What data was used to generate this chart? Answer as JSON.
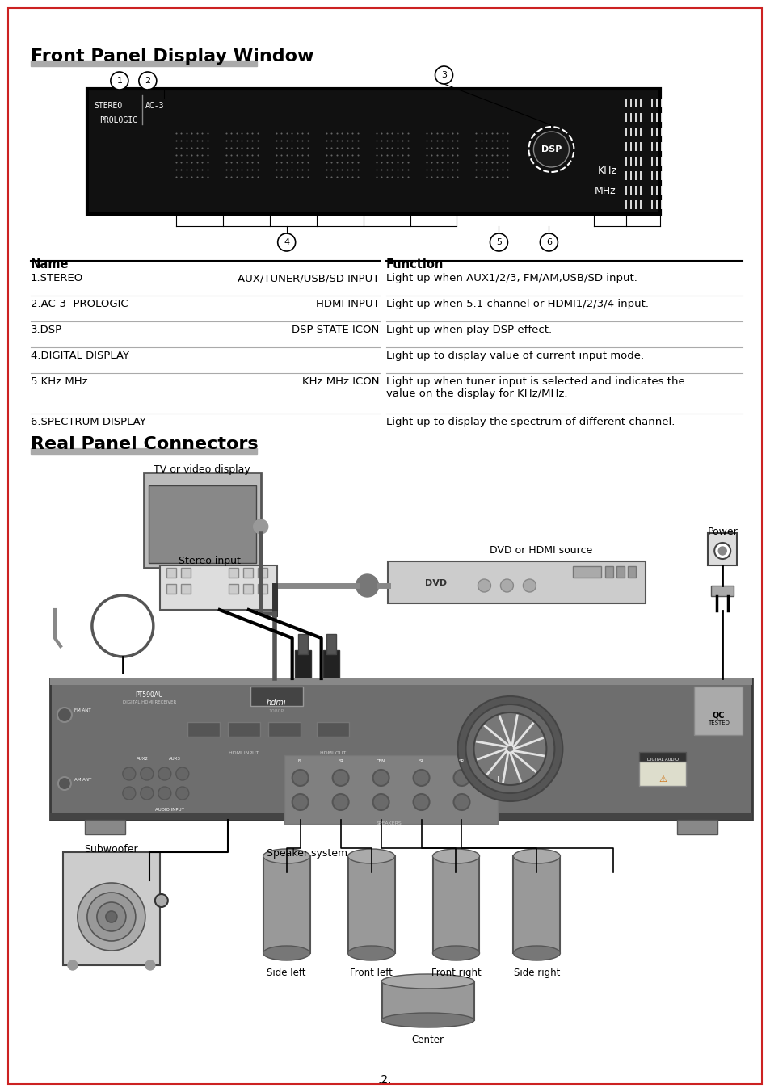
{
  "page_bg": "#ffffff",
  "border_color": "#cc2222",
  "title1": "Front Panel Display Window",
  "title2": "Real Panel Connectors",
  "table_rows": [
    [
      "1.STEREO",
      "AUX/TUNER/USB/SD INPUT",
      "Light up when AUX1/2/3, FM/AM,USB/SD input."
    ],
    [
      "2.AC-3  PROLOGIC",
      "HDMI INPUT",
      "Light up when 5.1 channel or HDMI1/2/3/4 input."
    ],
    [
      "3.DSP",
      "DSP STATE ICON",
      "Light up when play DSP effect."
    ],
    [
      "4.DIGITAL DISPLAY",
      "",
      "Light up to display value of current input mode."
    ],
    [
      "5.KHz MHz",
      "KHz MHz ICON",
      "Light up when tuner input is selected and indicates the\nvalue on the display for KHz/MHz."
    ],
    [
      "6.SPECTRUM DISPLAY",
      "",
      "Light up to display the spectrum of different channel."
    ]
  ],
  "labels": {
    "tv": "TV or video display",
    "stereo": "Stereo input",
    "dvd": "DVD or HDMI source",
    "power": "Power",
    "subwoofer": "Subwoofer",
    "speaker_system": "Speaker system",
    "side_left": "Side left",
    "front_left": "Front left",
    "front_right": "Front right",
    "side_right": "Side right",
    "center": "Center",
    "page_num": ".2."
  }
}
